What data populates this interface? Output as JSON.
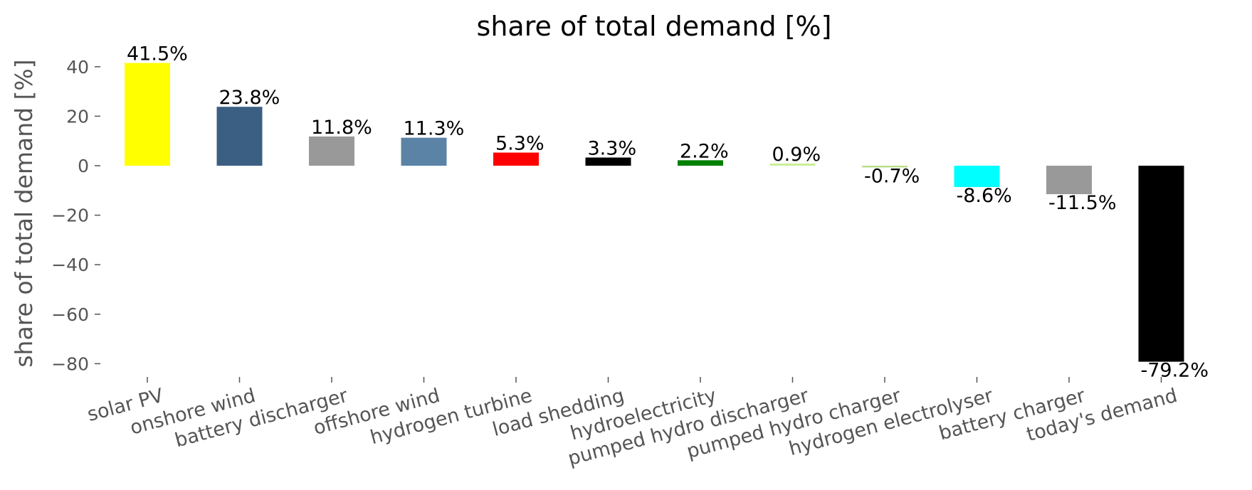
{
  "chart_data": {
    "type": "bar",
    "title": "share of total demand [%]",
    "xlabel": "",
    "ylabel": "share of total demand [%]",
    "ylim": [
      -88,
      44
    ],
    "yticks": [
      40,
      20,
      0,
      -20,
      -40,
      -60,
      -80
    ],
    "ytick_labels": [
      "40",
      "20",
      "0",
      "−20",
      "−40",
      "−60",
      "−80"
    ],
    "grid": false,
    "categories": [
      "solar PV",
      "onshore wind",
      "battery discharger",
      "offshore wind",
      "hydrogen turbine",
      "load shedding",
      "hydroelectricity",
      "pumped hydro discharger",
      "pumped hydro charger",
      "hydrogen electrolyser",
      "battery charger",
      "today's demand"
    ],
    "values": [
      41.5,
      23.8,
      11.8,
      11.3,
      5.3,
      3.3,
      2.2,
      0.9,
      -0.7,
      -8.6,
      -11.5,
      -79.2
    ],
    "data_labels": [
      "41.5%",
      "23.8%",
      "11.8%",
      "11.3%",
      "5.3%",
      "3.3%",
      "2.2%",
      "0.9%",
      "-0.7%",
      "-8.6%",
      "-11.5%",
      "-79.2%"
    ],
    "colors": [
      "#ffff00",
      "#3b5f82",
      "#999999",
      "#5b83a6",
      "#ff0000",
      "#000000",
      "#008000",
      "#ccee99",
      "#bbdd88",
      "#00ffff",
      "#999999",
      "#000000"
    ]
  }
}
